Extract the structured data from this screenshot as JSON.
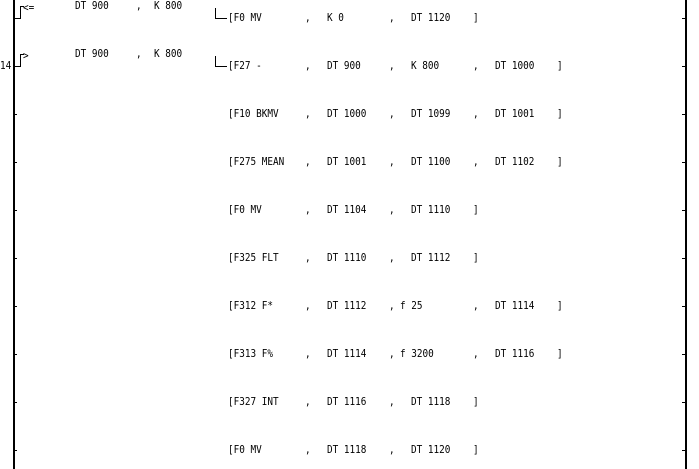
{
  "ladder": {
    "step_number": "14",
    "contacts": [
      {
        "op": "<=",
        "a": "DT 900",
        "b": "K 800"
      },
      {
        "op": ">",
        "a": "DT 900",
        "b": "K 800"
      }
    ],
    "instructions": [
      {
        "fn": "[F0 MV",
        "args": [
          "K 0",
          "DT 1120"
        ]
      },
      {
        "fn": "[F27 -",
        "args": [
          "DT 900",
          "K 800",
          "DT 1000"
        ]
      },
      {
        "fn": "[F10 BKMV",
        "args": [
          "DT 1000",
          "DT 1099",
          "DT 1001"
        ]
      },
      {
        "fn": "[F275 MEAN",
        "args": [
          "DT 1001",
          "DT 1100",
          "DT 1102"
        ]
      },
      {
        "fn": "[F0 MV",
        "args": [
          "DT 1104",
          "DT 1110"
        ]
      },
      {
        "fn": "[F325 FLT",
        "args": [
          "DT 1110",
          "DT 1112"
        ]
      },
      {
        "fn": "[F312 F*",
        "args": [
          "DT 1112",
          "f 25",
          "DT 1114"
        ]
      },
      {
        "fn": "[F313 F%",
        "args": [
          "DT 1114",
          "f 3200",
          "DT 1116"
        ]
      },
      {
        "fn": "[F327 INT",
        "args": [
          "DT 1116",
          "DT 1118"
        ]
      },
      {
        "fn": "[F0 MV",
        "args": [
          "DT 1118",
          "DT 1120"
        ]
      }
    ],
    "separator": ",",
    "close": "]"
  }
}
